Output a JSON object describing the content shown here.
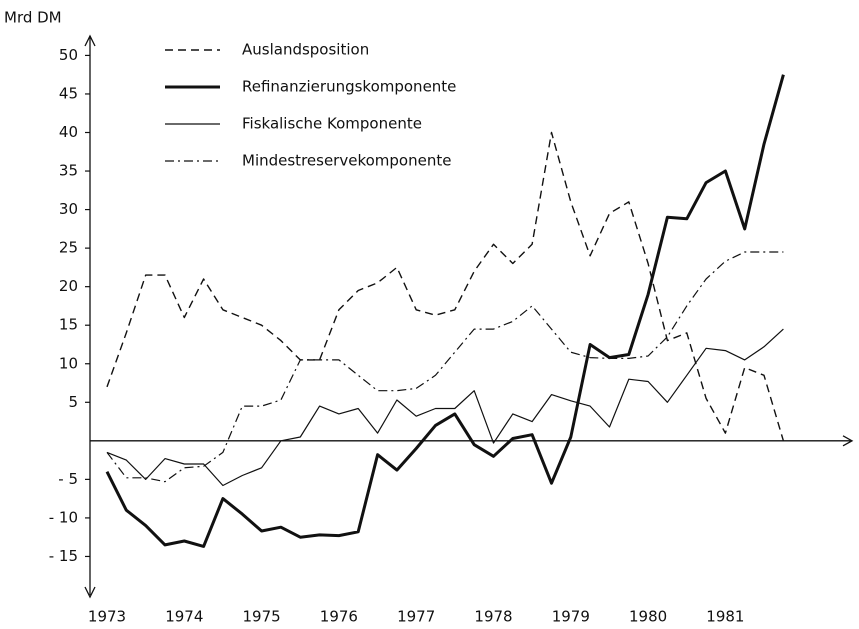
{
  "chart_data": {
    "type": "line",
    "ylabel": "Mrd DM",
    "x": [
      1973,
      1973.25,
      1973.5,
      1973.75,
      1974,
      1974.25,
      1974.5,
      1974.75,
      1975,
      1975.25,
      1975.5,
      1975.75,
      1976,
      1976.25,
      1976.5,
      1976.75,
      1977,
      1977.25,
      1977.5,
      1977.75,
      1978,
      1978.25,
      1978.5,
      1978.75,
      1979,
      1979.25,
      1979.5,
      1979.75,
      1980,
      1980.25,
      1980.5,
      1980.75,
      1981,
      1981.25,
      1981.5,
      1981.75
    ],
    "xlim": [
      1972.8,
      1982.2
    ],
    "xticks": [
      1973,
      1974,
      1975,
      1976,
      1977,
      1978,
      1979,
      1980,
      1981
    ],
    "ylim": [
      -20,
      52
    ],
    "yticks": [
      {
        "value": -15,
        "label": "- 15"
      },
      {
        "value": -10,
        "label": "- 10"
      },
      {
        "value": -5,
        "label": "- 5"
      },
      5,
      10,
      15,
      20,
      25,
      30,
      35,
      40,
      45,
      50
    ],
    "grid": false,
    "legend": "upper left",
    "series": [
      {
        "name": "Auslandsposition",
        "color": "#111111",
        "dash": "dashed",
        "width": 1.4,
        "values": [
          7,
          14,
          21.5,
          21.5,
          16,
          21,
          17,
          16,
          15,
          13,
          10.5,
          10.5,
          17,
          19.5,
          20.5,
          22.5,
          17,
          16.3,
          17,
          22,
          25.5,
          23,
          25.5,
          40,
          31,
          24,
          29.5,
          31,
          23,
          13,
          14,
          5.5,
          1,
          9.5,
          8.5,
          0
        ]
      },
      {
        "name": "Refinanzierungskomponente",
        "color": "#111111",
        "dash": "solid",
        "width": 3,
        "values": [
          -4,
          -9,
          -11,
          -13.5,
          -13,
          -13.7,
          -7.5,
          -9.5,
          -11.7,
          -11.2,
          -12.5,
          -12.2,
          -12.3,
          -11.8,
          -1.8,
          -3.8,
          -1,
          2,
          3.5,
          -0.5,
          -2,
          0.3,
          0.8,
          -5.5,
          0.5,
          12.5,
          10.8,
          11.2,
          19,
          29,
          28.8,
          33.5,
          35,
          27.5,
          38.5,
          47.5
        ]
      },
      {
        "name": "Fiskalische Komponente",
        "color": "#111111",
        "dash": "solid",
        "width": 1.2,
        "values": [
          -1.5,
          -2.5,
          -5,
          -2.3,
          -3,
          -3,
          -5.8,
          -4.5,
          -3.5,
          0,
          0.5,
          4.5,
          3.5,
          4.2,
          1,
          5.3,
          3.2,
          4.2,
          4.2,
          6.5,
          -0.3,
          3.5,
          2.5,
          6,
          5.2,
          4.5,
          1.8,
          8,
          7.7,
          5,
          8.5,
          12,
          11.7,
          10.5,
          12.2,
          14.5
        ]
      },
      {
        "name": "Mindestreservekomponente",
        "color": "#111111",
        "dash": "dashdot",
        "width": 1.2,
        "values": [
          -1.5,
          -4.8,
          -4.8,
          -5.3,
          -3.5,
          -3.3,
          -1.5,
          4.5,
          4.5,
          5.3,
          10.5,
          10.5,
          10.5,
          8.5,
          6.5,
          6.5,
          6.8,
          8.5,
          11.5,
          14.5,
          14.5,
          15.5,
          17.5,
          14.5,
          11.5,
          10.8,
          10.7,
          10.7,
          11,
          13.5,
          17.5,
          21,
          23.3,
          24.5,
          24.5,
          24.5
        ]
      }
    ]
  }
}
